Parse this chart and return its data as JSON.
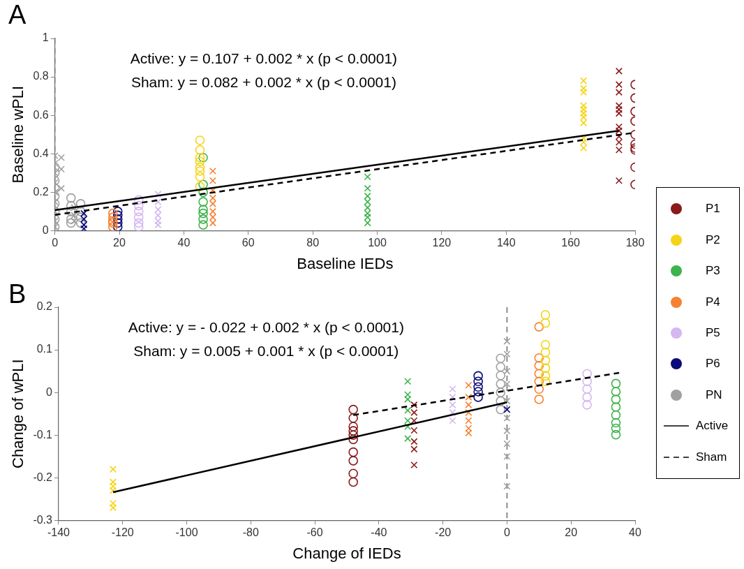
{
  "chart_data": [
    {
      "type": "scatter",
      "title": "A",
      "xlabel": "Baseline IEDs",
      "ylabel": "Baseline wPLI",
      "xlim": [
        0,
        180
      ],
      "xticks": [
        0,
        20,
        40,
        60,
        80,
        100,
        120,
        140,
        160,
        180
      ],
      "ylim": [
        0,
        1
      ],
      "yticks": [
        0,
        0.2,
        0.4,
        0.6,
        0.8,
        1
      ],
      "grid": false,
      "legend": "right",
      "annotations": [
        "Active: y = 0.107 + 0.002 * x (p < 0.0001)",
        "Sham: y = 0.082 + 0.002 * x (p < 0.0001)"
      ],
      "ref_lines": [
        {
          "axis": "x",
          "value": 0,
          "label": null,
          "color": "#808080",
          "line_style": "dashed"
        }
      ],
      "series": [
        {
          "name": "P1",
          "color": "#8b1a1a",
          "marker": "cross",
          "x": [
            175,
            175,
            175,
            175,
            175,
            175,
            175,
            175,
            175,
            175,
            175,
            175
          ],
          "values": [
            0.83,
            0.76,
            0.72,
            0.65,
            0.63,
            0.61,
            0.54,
            0.52,
            0.49,
            0.46,
            0.42,
            0.26
          ]
        },
        {
          "color": "#8b1a1a",
          "marker": "circle",
          "x": [
            180,
            180,
            180,
            180,
            180,
            180,
            180,
            180,
            180,
            180
          ],
          "values": [
            0.76,
            0.69,
            0.62,
            0.57,
            0.5,
            0.45,
            0.43,
            0.42,
            0.33,
            0.24
          ]
        },
        {
          "name": "P2",
          "color": "#f5d416",
          "marker": "cross",
          "x": [
            164,
            164,
            164,
            164,
            164,
            164,
            164,
            164,
            164,
            164,
            164
          ],
          "values": [
            0.78,
            0.74,
            0.72,
            0.65,
            0.63,
            0.61,
            0.59,
            0.56,
            0.48,
            0.46,
            0.43
          ]
        },
        {
          "color": "#f5d416",
          "marker": "circle",
          "x": [
            45,
            45,
            45,
            45,
            45,
            45,
            45,
            45
          ],
          "values": [
            0.47,
            0.42,
            0.38,
            0.36,
            0.33,
            0.31,
            0.28,
            0.23
          ]
        },
        {
          "name": "P3",
          "color": "#3cb44b",
          "marker": "cross",
          "x": [
            97,
            97,
            97,
            97,
            97,
            97,
            97,
            97
          ],
          "values": [
            0.28,
            0.22,
            0.18,
            0.15,
            0.12,
            0.09,
            0.07,
            0.04
          ]
        },
        {
          "color": "#3cb44b",
          "marker": "circle",
          "x": [
            46,
            46,
            46,
            46,
            46,
            46,
            46,
            46
          ],
          "values": [
            0.38,
            0.24,
            0.2,
            0.15,
            0.11,
            0.09,
            0.06,
            0.03
          ]
        },
        {
          "name": "P4",
          "color": "#f58231",
          "marker": "cross",
          "x": [
            49,
            49,
            49,
            49,
            49,
            49,
            49,
            49
          ],
          "values": [
            0.31,
            0.26,
            0.21,
            0.17,
            0.14,
            0.1,
            0.07,
            0.04
          ]
        },
        {
          "color": "#f58231",
          "marker": "circle",
          "x": [
            18,
            18,
            18,
            18,
            18
          ],
          "values": [
            0.09,
            0.07,
            0.05,
            0.04,
            0.02
          ]
        },
        {
          "name": "P5",
          "color": "#d4b8f0",
          "marker": "cross",
          "x": [
            32,
            32,
            32,
            32,
            32,
            32
          ],
          "values": [
            0.19,
            0.15,
            0.11,
            0.08,
            0.05,
            0.03
          ]
        },
        {
          "color": "#d4b8f0",
          "marker": "circle",
          "x": [
            26,
            26,
            26,
            26,
            26,
            26
          ],
          "values": [
            0.16,
            0.13,
            0.1,
            0.07,
            0.04,
            0.02
          ]
        },
        {
          "name": "P6",
          "color": "#0a0a78",
          "marker": "cross",
          "x": [
            9,
            9,
            9,
            9
          ],
          "values": [
            0.09,
            0.06,
            0.03,
            0.01
          ]
        },
        {
          "color": "#0a0a78",
          "marker": "circle",
          "x": [
            19.5,
            19.5,
            19.5,
            19.5,
            19.5
          ],
          "values": [
            0.1,
            0.08,
            0.06,
            0.04,
            0.02
          ]
        },
        {
          "name": "PN",
          "color": "#a0a0a0",
          "marker": "cross",
          "x": [
            0,
            0,
            0,
            0,
            0,
            0,
            0,
            0,
            0,
            2,
            2,
            2,
            6,
            6,
            6
          ],
          "values": [
            0.39,
            0.35,
            0.3,
            0.25,
            0.2,
            0.15,
            0.1,
            0.05,
            0.02,
            0.38,
            0.32,
            0.22,
            0.12,
            0.08,
            0.05
          ]
        },
        {
          "color": "#a0a0a0",
          "marker": "circle",
          "x": [
            0,
            0,
            0,
            0,
            0,
            0,
            0,
            0,
            0,
            5,
            5,
            5,
            5,
            5,
            8,
            8,
            8,
            8
          ],
          "values": [
            0.33,
            0.3,
            0.26,
            0.22,
            0.18,
            0.14,
            0.1,
            0.06,
            0.02,
            0.17,
            0.13,
            0.1,
            0.06,
            0.04,
            0.14,
            0.1,
            0.07,
            0.04
          ]
        },
        {
          "name": "Active",
          "type": "line",
          "color": "#000000",
          "line_style": "solid",
          "marker": "none",
          "x": [
            0,
            175
          ],
          "values": [
            0.107,
            0.52
          ]
        },
        {
          "name": "Sham",
          "type": "line",
          "color": "#000000",
          "line_style": "dashed",
          "marker": "none",
          "x": [
            0,
            180
          ],
          "values": [
            0.082,
            0.51
          ]
        }
      ]
    },
    {
      "type": "scatter",
      "title": "B",
      "xlabel": "Change of IEDs",
      "ylabel": "Change of wPLI",
      "xlim": [
        -140,
        40
      ],
      "xticks": [
        -140,
        -120,
        -100,
        -80,
        -60,
        -40,
        -20,
        0,
        20,
        40
      ],
      "ylim": [
        -0.3,
        0.2
      ],
      "yticks": [
        -0.3,
        -0.2,
        -0.1,
        0,
        0.1,
        0.2
      ],
      "grid": false,
      "annotations": [
        "Active: y = - 0.022 + 0.002 * x (p < 0.0001)",
        "Sham: y = 0.005 + 0.001 * x (p < 0.0001)"
      ],
      "ref_lines": [
        {
          "axis": "x",
          "value": 0,
          "label": null,
          "color": "#808080",
          "line_style": "dashed"
        }
      ],
      "series": [
        {
          "color": "#8b1a1a",
          "marker": "cross",
          "x": [
            -29,
            -29,
            -29,
            -29,
            -29,
            -29,
            -29
          ],
          "values": [
            -0.029,
            -0.047,
            -0.066,
            -0.089,
            -0.115,
            -0.133,
            -0.17
          ]
        },
        {
          "color": "#8b1a1a",
          "marker": "circle",
          "x": [
            -48,
            -48,
            -48,
            -48,
            -48,
            -48,
            -48,
            -48,
            -48,
            -48
          ],
          "values": [
            -0.04,
            -0.06,
            -0.08,
            -0.09,
            -0.1,
            -0.11,
            -0.14,
            -0.16,
            -0.19,
            -0.21
          ]
        },
        {
          "color": "#f5d416",
          "marker": "cross",
          "x": [
            -123,
            -123,
            -123,
            -123,
            -123,
            -123
          ],
          "values": [
            -0.18,
            -0.21,
            -0.22,
            -0.23,
            -0.26,
            -0.27
          ]
        },
        {
          "color": "#f5d416",
          "marker": "circle",
          "x": [
            12,
            12,
            12,
            12,
            12,
            12,
            12,
            12
          ],
          "values": [
            0.182,
            0.163,
            0.112,
            0.094,
            0.075,
            0.057,
            0.039,
            0.026
          ]
        },
        {
          "color": "#3cb44b",
          "marker": "cross",
          "x": [
            -31,
            -31,
            -31,
            -31,
            -31,
            -31,
            -31
          ],
          "values": [
            0.026,
            -0.005,
            -0.016,
            -0.042,
            -0.066,
            -0.08,
            -0.108
          ]
        },
        {
          "color": "#3cb44b",
          "marker": "circle",
          "x": [
            34,
            34,
            34,
            34,
            34,
            34,
            34,
            34
          ],
          "values": [
            0.021,
            0.002,
            -0.016,
            -0.034,
            -0.053,
            -0.071,
            -0.084,
            -0.099
          ]
        },
        {
          "color": "#f58231",
          "marker": "cross",
          "x": [
            -12,
            -12,
            -12,
            -12,
            -12,
            -12,
            -12
          ],
          "values": [
            0.017,
            -0.011,
            -0.029,
            -0.047,
            -0.066,
            -0.084,
            -0.095
          ]
        },
        {
          "color": "#f58231",
          "marker": "circle",
          "x": [
            10,
            10,
            10,
            10,
            10,
            10,
            10
          ],
          "values": [
            0.154,
            0.081,
            0.063,
            0.044,
            0.026,
            0.008,
            -0.016
          ]
        },
        {
          "color": "#d4b8f0",
          "marker": "cross",
          "x": [
            -17,
            -17,
            -17,
            -17,
            -17
          ],
          "values": [
            0.008,
            -0.011,
            -0.029,
            -0.047,
            -0.066
          ]
        },
        {
          "color": "#d4b8f0",
          "marker": "circle",
          "x": [
            25,
            25,
            25,
            25,
            25
          ],
          "values": [
            0.044,
            0.026,
            0.008,
            -0.011,
            -0.029
          ]
        },
        {
          "color": "#0a0a78",
          "marker": "cross",
          "x": [
            0
          ],
          "values": [
            -0.04
          ]
        },
        {
          "color": "#0a0a78",
          "marker": "circle",
          "x": [
            -9,
            -9,
            -9,
            -9,
            -9
          ],
          "values": [
            0.039,
            0.026,
            0.013,
            0.002,
            -0.011
          ]
        },
        {
          "color": "#a0a0a0",
          "marker": "cross",
          "x": [
            0,
            0,
            0,
            0,
            0,
            0,
            0,
            0,
            0,
            0
          ],
          "values": [
            0.12,
            0.09,
            0.05,
            0.02,
            -0.02,
            -0.06,
            -0.09,
            -0.12,
            -0.15,
            -0.22
          ]
        },
        {
          "color": "#a0a0a0",
          "marker": "circle",
          "x": [
            -2,
            -2,
            -2,
            -2,
            -2,
            -2,
            -2
          ],
          "values": [
            0.08,
            0.06,
            0.04,
            0.02,
            0,
            -0.02,
            -0.04
          ]
        },
        {
          "type": "line",
          "color": "#000000",
          "line_style": "solid",
          "marker": "none",
          "x": [
            -123,
            0
          ],
          "values": [
            -0.234,
            -0.023
          ]
        },
        {
          "type": "line",
          "color": "#000000",
          "line_style": "dashed",
          "marker": "none",
          "x": [
            -48,
            35
          ],
          "values": [
            -0.053,
            0.046
          ]
        }
      ]
    }
  ]
}
